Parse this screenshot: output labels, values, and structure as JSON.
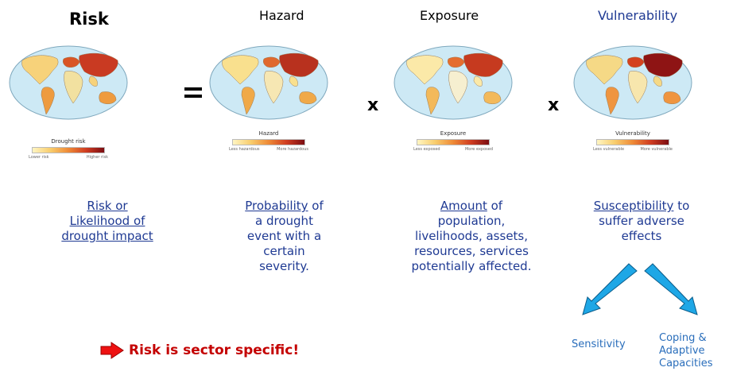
{
  "titles": {
    "risk": "Risk",
    "hazard": "Hazard",
    "exposure": "Exposure",
    "vulnerability": "Vulnerability"
  },
  "maps": [
    {
      "legend_title": "Drought risk",
      "low": "Lower risk",
      "high": "Higher risk"
    },
    {
      "legend_title": "Hazard",
      "low": "Less hazardous",
      "high": "More hazardous"
    },
    {
      "legend_title": "Exposure",
      "low": "Less exposed",
      "high": "More exposed"
    },
    {
      "legend_title": "Vulnerability",
      "low": "Less vulnerable",
      "high": "More vulnerable"
    }
  ],
  "operators": {
    "equals": "=",
    "times": "x"
  },
  "descriptions": {
    "risk_line1": "Risk or",
    "risk_line2": "Likelihood of",
    "risk_line3": "drought impact",
    "hazard_u": "Probability",
    "hazard_rest1": " of",
    "hazard_line2": "a drought",
    "hazard_line3": "event with a",
    "hazard_line4": "certain",
    "hazard_line5": "severity.",
    "exposure_u": "Amount",
    "exposure_rest1": " of",
    "exposure_line2": "population,",
    "exposure_line3": "livelihoods, assets,",
    "exposure_line4": "resources, services",
    "exposure_line5": "potentially affected.",
    "vuln_u": "Susceptibility",
    "vuln_rest1": " to",
    "vuln_line2": "suffer adverse",
    "vuln_line3": "effects"
  },
  "components": {
    "sensitivity": "Sensitivity",
    "coping_line1": "Coping &",
    "coping_line2": "Adaptive",
    "coping_line3": "Capacities"
  },
  "bottom_note": "Risk is sector specific!",
  "colors": {
    "accent_blue": "#1f3a93",
    "arrow_blue": "#1ea7e6",
    "note_red": "#c40000"
  }
}
